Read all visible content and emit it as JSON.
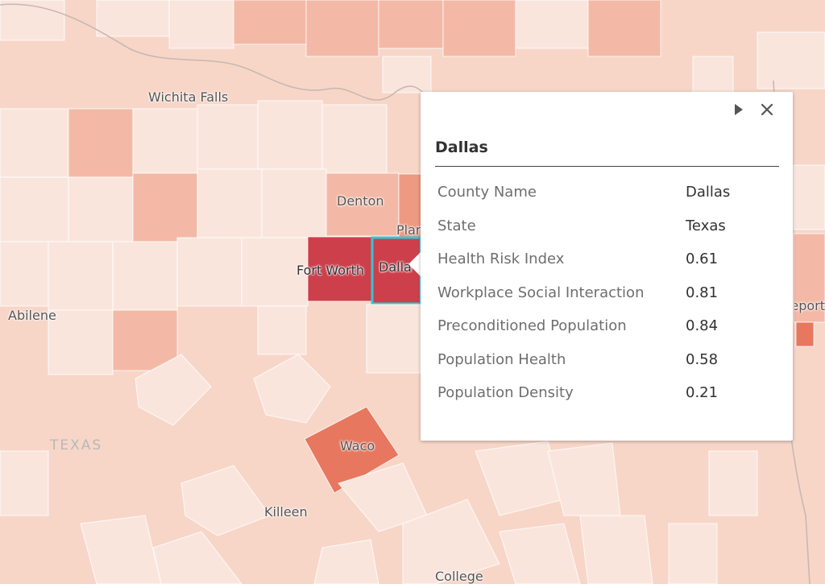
{
  "map": {
    "place_labels": [
      "Wichita Falls",
      "Denton",
      "Plano",
      "Fort Worth",
      "Dallas",
      "Abilene",
      "Waco",
      "Killeen",
      "College Station",
      "Shreveport"
    ],
    "state_label": "TEXAS",
    "colors": {
      "background": "#f7d6c8",
      "light": "#fae5dd",
      "medium": "#f4b9a6",
      "darker": "#ee9a82",
      "orange_red": "#e7775f",
      "dark_red": "#cd3f4b",
      "highlight": "#34c7d4",
      "border": "#ffffff"
    }
  },
  "popup": {
    "title": "Dallas",
    "next_icon": "play-icon",
    "close_icon": "close-icon",
    "fields": [
      {
        "name": "County Name",
        "value": "Dallas"
      },
      {
        "name": "State",
        "value": "Texas"
      },
      {
        "name": "Health Risk Index",
        "value": "0.61"
      },
      {
        "name": "Workplace Social Interaction",
        "value": "0.81"
      },
      {
        "name": "Preconditioned Population",
        "value": "0.84"
      },
      {
        "name": "Population Health",
        "value": "0.58"
      },
      {
        "name": "Population Density",
        "value": "0.21"
      }
    ]
  }
}
